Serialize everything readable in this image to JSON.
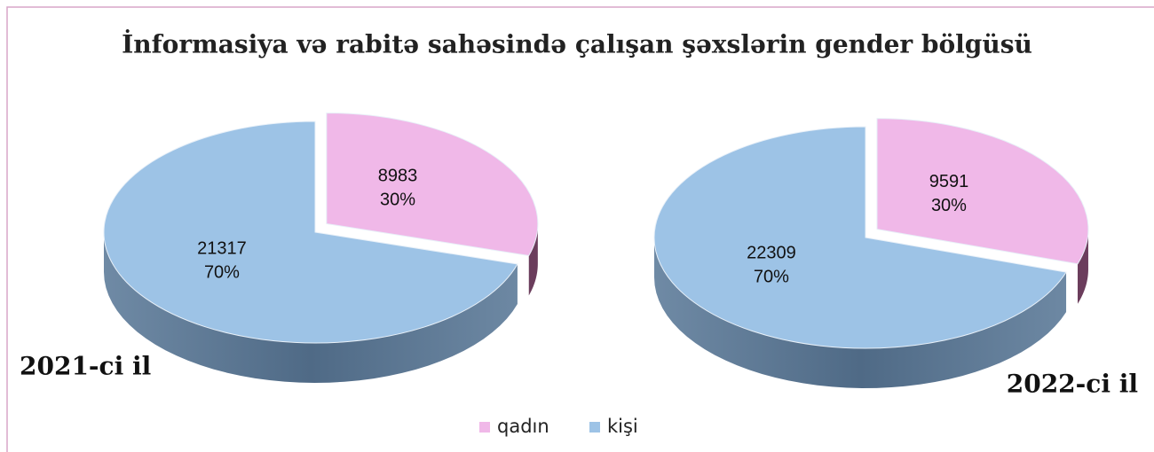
{
  "title": "İnformasiya və rabitə sahəsində çalışan şəxslərin gender bölgüsü",
  "chart_data": [
    {
      "type": "pie",
      "label": "2021-ci il",
      "categories": [
        "qadın",
        "kişi"
      ],
      "colors": [
        "#f0b8e8",
        "#9dc3e6"
      ],
      "values": [
        8983,
        21317
      ],
      "percent_labels": [
        "30%",
        "70%"
      ]
    },
    {
      "type": "pie",
      "label": "2022-ci il",
      "categories": [
        "qadın",
        "kişi"
      ],
      "colors": [
        "#f0b8e8",
        "#9dc3e6"
      ],
      "values": [
        9591,
        22309
      ],
      "percent_labels": [
        "30%",
        "70%"
      ]
    }
  ]
}
